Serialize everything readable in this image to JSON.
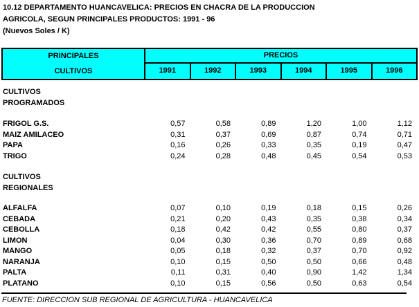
{
  "title": {
    "line1": "10.12 DEPARTAMENTO HUANCAVELICA: PRECIOS EN CHACRA DE LA PRODUCCION",
    "line2": "AGRICOLA, SEGUN PRINCIPALES PRODUCTOS: 1991 - 96",
    "line3": "(Nuevos Soles / K)"
  },
  "colors": {
    "header_bg": "#00ffff",
    "border": "#000000",
    "text": "#000000",
    "page_bg": "#ffffff"
  },
  "table": {
    "left_header": [
      "PRINCIPALES",
      "CULTIVOS"
    ],
    "group_header": "PRECIOS",
    "years": [
      "1991",
      "1992",
      "1993",
      "1994",
      "1995",
      "1996"
    ],
    "sections": [
      {
        "name": [
          "CULTIVOS",
          "PROGRAMADOS"
        ],
        "rows": [
          {
            "label": "FRIGOL G.S.",
            "values": [
              "0,57",
              "0,58",
              "0,89",
              "1,20",
              "1,00",
              "1,12"
            ]
          },
          {
            "label": "MAIZ AMILACEO",
            "values": [
              "0,31",
              "0,37",
              "0,69",
              "0,87",
              "0,74",
              "0,71"
            ]
          },
          {
            "label": "PAPA",
            "values": [
              "0,16",
              "0,26",
              "0,33",
              "0,35",
              "0,19",
              "0,47"
            ]
          },
          {
            "label": "TRIGO",
            "values": [
              "0,24",
              "0,28",
              "0,48",
              "0,45",
              "0,54",
              "0,53"
            ]
          }
        ]
      },
      {
        "name": [
          "CULTIVOS",
          "REGIONALES"
        ],
        "rows": [
          {
            "label": "ALFALFA",
            "values": [
              "0,07",
              "0,10",
              "0,19",
              "0,18",
              "0,15",
              "0,26"
            ]
          },
          {
            "label": "CEBADA",
            "values": [
              "0,21",
              "0,20",
              "0,43",
              "0,35",
              "0,38",
              "0,34"
            ]
          },
          {
            "label": "CEBOLLA",
            "values": [
              "0,18",
              "0,42",
              "0,42",
              "0,55",
              "0,80",
              "0,37"
            ]
          },
          {
            "label": "LIMON",
            "values": [
              "0,04",
              "0,30",
              "0,36",
              "0,70",
              "0,89",
              "0,68"
            ]
          },
          {
            "label": "MANGO",
            "values": [
              "0,05",
              "0,18",
              "0,32",
              "0,37",
              "0,70",
              "0,92"
            ]
          },
          {
            "label": "NARANJA",
            "values": [
              "0,10",
              "0,15",
              "0,50",
              "0,50",
              "0,66",
              "0,48"
            ]
          },
          {
            "label": "PALTA",
            "values": [
              "0,11",
              "0,31",
              "0,40",
              "0,90",
              "1,42",
              "1,34"
            ]
          },
          {
            "label": "PLATANO",
            "values": [
              "0,10",
              "0,15",
              "0,56",
              "0,50",
              "0,63",
              "0,54"
            ]
          }
        ]
      }
    ]
  },
  "footer": {
    "source": "FUENTE: DIRECCION SUB REGIONAL DE AGRICULTURA - HUANCAVELICA"
  }
}
